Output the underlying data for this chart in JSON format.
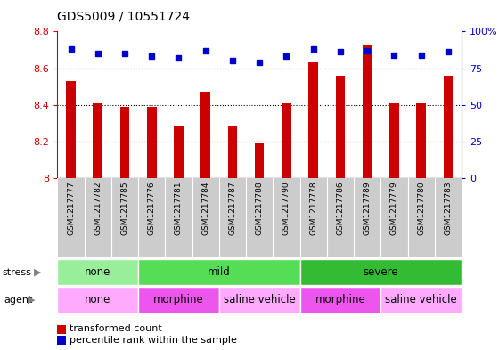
{
  "title": "GDS5009 / 10551724",
  "samples": [
    "GSM1217777",
    "GSM1217782",
    "GSM1217785",
    "GSM1217776",
    "GSM1217781",
    "GSM1217784",
    "GSM1217787",
    "GSM1217788",
    "GSM1217790",
    "GSM1217778",
    "GSM1217786",
    "GSM1217789",
    "GSM1217779",
    "GSM1217780",
    "GSM1217783"
  ],
  "transformed_counts": [
    8.53,
    8.41,
    8.39,
    8.39,
    8.29,
    8.47,
    8.29,
    8.19,
    8.41,
    8.63,
    8.56,
    8.73,
    8.41,
    8.41,
    8.56
  ],
  "percentile_ranks": [
    88,
    85,
    85,
    83,
    82,
    87,
    80,
    79,
    83,
    88,
    86,
    87,
    84,
    84,
    86
  ],
  "ylim_left": [
    8.0,
    8.8
  ],
  "ylim_right": [
    0,
    100
  ],
  "yticks_left": [
    8.0,
    8.2,
    8.4,
    8.6,
    8.8
  ],
  "yticks_right": [
    0,
    25,
    50,
    75,
    100
  ],
  "bar_color": "#cc0000",
  "dot_color": "#0000cc",
  "bar_width": 0.35,
  "stress_groups": [
    {
      "label": "none",
      "start": 0,
      "end": 3,
      "color": "#99ee99"
    },
    {
      "label": "mild",
      "start": 3,
      "end": 9,
      "color": "#55dd55"
    },
    {
      "label": "severe",
      "start": 9,
      "end": 15,
      "color": "#33bb33"
    }
  ],
  "agent_groups": [
    {
      "label": "none",
      "start": 0,
      "end": 3,
      "color": "#ffaaff"
    },
    {
      "label": "morphine",
      "start": 3,
      "end": 6,
      "color": "#ee55ee"
    },
    {
      "label": "saline vehicle",
      "start": 6,
      "end": 9,
      "color": "#ffaaff"
    },
    {
      "label": "morphine",
      "start": 9,
      "end": 12,
      "color": "#ee55ee"
    },
    {
      "label": "saline vehicle",
      "start": 12,
      "end": 15,
      "color": "#ffaaff"
    }
  ],
  "stress_label": "stress",
  "agent_label": "agent",
  "legend_bar_label": "transformed count",
  "legend_dot_label": "percentile rank within the sample",
  "bg_color": "#ffffff",
  "axis_color_left": "#cc0000",
  "axis_color_right": "#0000cc",
  "xtick_bg": "#cccccc",
  "grid_dotted_values": [
    8.2,
    8.4,
    8.6
  ]
}
